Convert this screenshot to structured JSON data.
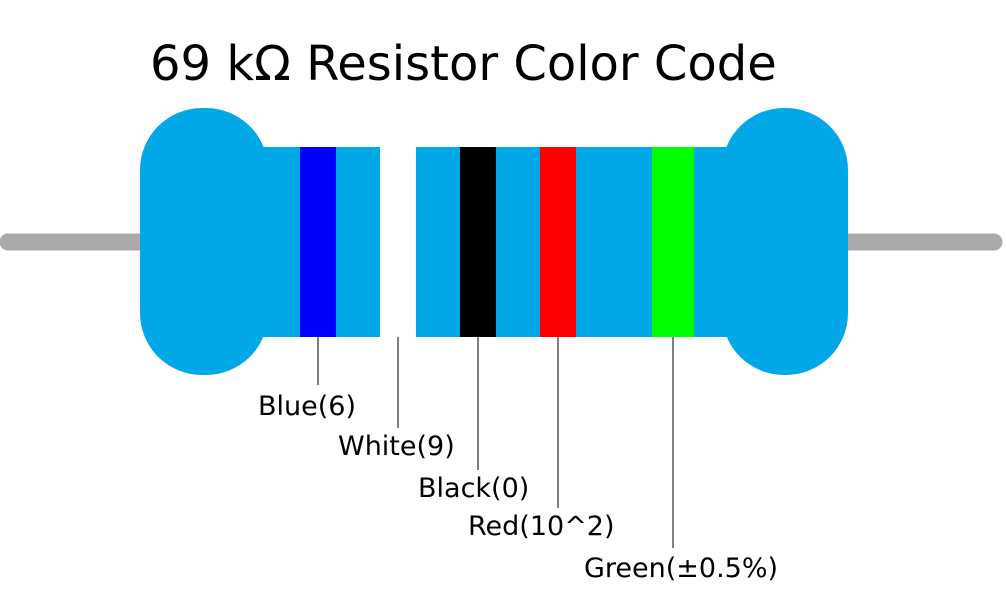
{
  "title": "69 kΩ Resistor Color Code",
  "bands": [
    {
      "label": "Blue(6)",
      "color": "#0000ff"
    },
    {
      "label": "White(9)",
      "color": "#ffffff"
    },
    {
      "label": "Black(0)",
      "color": "#000000"
    },
    {
      "label": "Red(10^2)",
      "color": "#ff0000"
    },
    {
      "label": "Green(±0.5%)",
      "color": "#00ff00"
    }
  ]
}
